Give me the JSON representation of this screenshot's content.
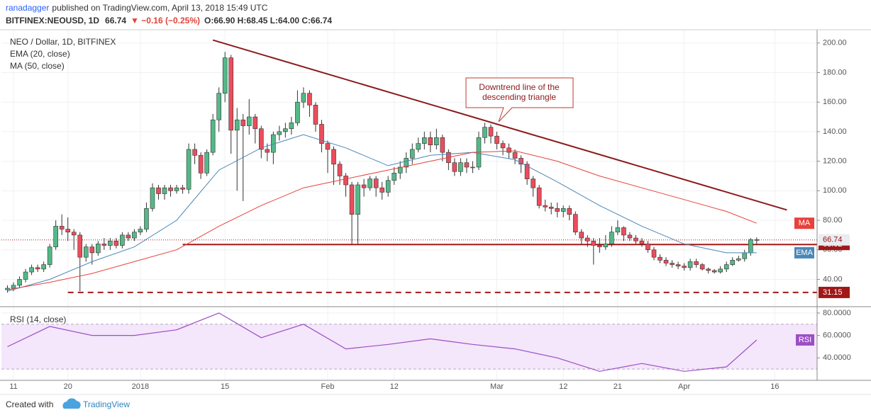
{
  "header": {
    "user": "ranadagger",
    "published": "published on TradingView.com, April 13, 2018 15:49 UTC",
    "symbol": "BITFINEX:NEOUSD, 1D",
    "price": "66.74",
    "change": "▼ −0.16 (−0.25%)",
    "ohlc": "O:66.90 H:68.45 L:64.00 C:66.74"
  },
  "footer": {
    "created": "Created with",
    "brand": "TradingView"
  },
  "chart_data": [
    {
      "type": "candlestick",
      "title": "NEO / Dollar, 1D, BITFINEX",
      "x": [
        "2017-12-10",
        "2017-12-11",
        "2017-12-12",
        "2017-12-13",
        "2017-12-14",
        "2017-12-15",
        "2017-12-16",
        "2017-12-17",
        "2017-12-18",
        "2017-12-19",
        "2017-12-20",
        "2017-12-21",
        "2017-12-22",
        "2017-12-23",
        "2017-12-24",
        "2017-12-25",
        "2017-12-26",
        "2017-12-27",
        "2017-12-28",
        "2017-12-29",
        "2017-12-30",
        "2017-12-31",
        "2018-01-01",
        "2018-01-02",
        "2018-01-03",
        "2018-01-04",
        "2018-01-05",
        "2018-01-06",
        "2018-01-07",
        "2018-01-08",
        "2018-01-09",
        "2018-01-10",
        "2018-01-11",
        "2018-01-12",
        "2018-01-13",
        "2018-01-14",
        "2018-01-15",
        "2018-01-16",
        "2018-01-17",
        "2018-01-18",
        "2018-01-19",
        "2018-01-20",
        "2018-01-21",
        "2018-01-22",
        "2018-01-23",
        "2018-01-24",
        "2018-01-25",
        "2018-01-26",
        "2018-01-27",
        "2018-01-28",
        "2018-01-29",
        "2018-01-30",
        "2018-01-31",
        "2018-02-01",
        "2018-02-02",
        "2018-02-03",
        "2018-02-04",
        "2018-02-05",
        "2018-02-06",
        "2018-02-07",
        "2018-02-08",
        "2018-02-09",
        "2018-02-10",
        "2018-02-11",
        "2018-02-12",
        "2018-02-13",
        "2018-02-14",
        "2018-02-15",
        "2018-02-16",
        "2018-02-17",
        "2018-02-18",
        "2018-02-19",
        "2018-02-20",
        "2018-02-21",
        "2018-02-22",
        "2018-02-23",
        "2018-02-24",
        "2018-02-25",
        "2018-02-26",
        "2018-02-27",
        "2018-02-28",
        "2018-03-01",
        "2018-03-02",
        "2018-03-03",
        "2018-03-04",
        "2018-03-05",
        "2018-03-06",
        "2018-03-07",
        "2018-03-08",
        "2018-03-09",
        "2018-03-10",
        "2018-03-11",
        "2018-03-12",
        "2018-03-13",
        "2018-03-14",
        "2018-03-15",
        "2018-03-16",
        "2018-03-17",
        "2018-03-18",
        "2018-03-19",
        "2018-03-20",
        "2018-03-21",
        "2018-03-22",
        "2018-03-23",
        "2018-03-24",
        "2018-03-25",
        "2018-03-26",
        "2018-03-27",
        "2018-03-28",
        "2018-03-29",
        "2018-03-30",
        "2018-03-31",
        "2018-04-01",
        "2018-04-02",
        "2018-04-03",
        "2018-04-04",
        "2018-04-05",
        "2018-04-06",
        "2018-04-07",
        "2018-04-08",
        "2018-04-09",
        "2018-04-10",
        "2018-04-11",
        "2018-04-12",
        "2018-04-13"
      ],
      "open": [
        33,
        34,
        36,
        40,
        45,
        48,
        47,
        50,
        62,
        76,
        74,
        72,
        70,
        55,
        62,
        58,
        64,
        63,
        66,
        63,
        70,
        68,
        72,
        74,
        88,
        102,
        98,
        102,
        100,
        102,
        101,
        128,
        124,
        112,
        126,
        148,
        166,
        190,
        141,
        148,
        144,
        150,
        142,
        128,
        126,
        138,
        140,
        142,
        146,
        160,
        166,
        158,
        145,
        132,
        128,
        118,
        110,
        104,
        84,
        104,
        102,
        108,
        102,
        99,
        107,
        112,
        116,
        122,
        128,
        132,
        136,
        131,
        136,
        126,
        119,
        113,
        119,
        116,
        116,
        136,
        143,
        137,
        132,
        129,
        126,
        122,
        118,
        108,
        102,
        90,
        89,
        88,
        86,
        88,
        84,
        72,
        68,
        66,
        63,
        62,
        64,
        72,
        75,
        70,
        68,
        66,
        64,
        60,
        55,
        53,
        51,
        50,
        49,
        48,
        52,
        50,
        47,
        46,
        45,
        47,
        50,
        53,
        54,
        58,
        66.9
      ],
      "high": [
        36,
        38,
        42,
        47,
        50,
        50,
        52,
        64,
        80,
        84,
        82,
        74,
        72,
        64,
        64,
        66,
        68,
        68,
        68,
        72,
        72,
        74,
        76,
        92,
        105,
        104,
        104,
        104,
        104,
        104,
        132,
        132,
        126,
        128,
        152,
        170,
        194,
        192,
        156,
        152,
        162,
        152,
        144,
        132,
        140,
        144,
        146,
        150,
        168,
        170,
        168,
        160,
        148,
        134,
        130,
        120,
        112,
        106,
        106,
        108,
        110,
        110,
        106,
        110,
        116,
        120,
        126,
        132,
        136,
        140,
        140,
        142,
        138,
        128,
        122,
        122,
        122,
        120,
        140,
        146,
        145,
        140,
        134,
        132,
        128,
        124,
        120,
        110,
        104,
        94,
        92,
        92,
        90,
        90,
        86,
        74,
        70,
        68,
        68,
        70,
        76,
        80,
        76,
        72,
        70,
        68,
        66,
        62,
        57,
        55,
        53,
        52,
        51,
        54,
        54,
        51,
        48,
        47,
        49,
        52,
        55,
        56,
        60,
        68,
        68.45
      ],
      "low": [
        31,
        32,
        34,
        38,
        43,
        45,
        45,
        48,
        60,
        70,
        66,
        60,
        32,
        52,
        50,
        56,
        60,
        60,
        61,
        61,
        66,
        66,
        70,
        72,
        86,
        94,
        94,
        96,
        98,
        98,
        98,
        118,
        108,
        110,
        124,
        140,
        160,
        125,
        100,
        93,
        138,
        132,
        122,
        120,
        118,
        134,
        136,
        138,
        144,
        156,
        150,
        140,
        126,
        112,
        104,
        104,
        96,
        64,
        64,
        96,
        100,
        96,
        94,
        96,
        104,
        108,
        112,
        118,
        126,
        128,
        126,
        128,
        120,
        114,
        110,
        110,
        112,
        112,
        114,
        132,
        132,
        128,
        124,
        122,
        118,
        112,
        104,
        96,
        88,
        86,
        84,
        82,
        82,
        80,
        70,
        64,
        62,
        50,
        58,
        60,
        62,
        70,
        66,
        66,
        64,
        62,
        58,
        53,
        51,
        49,
        48,
        47,
        46,
        46,
        48,
        46,
        44,
        44,
        44,
        45,
        49,
        52,
        52,
        56,
        64
      ],
      "close": [
        34,
        36,
        40,
        45,
        48,
        47,
        50,
        62,
        76,
        74,
        72,
        70,
        55,
        62,
        58,
        64,
        63,
        66,
        63,
        70,
        68,
        72,
        74,
        88,
        102,
        98,
        102,
        100,
        102,
        101,
        128,
        124,
        112,
        126,
        148,
        166,
        190,
        141,
        148,
        144,
        150,
        142,
        128,
        126,
        138,
        140,
        142,
        146,
        160,
        166,
        158,
        145,
        132,
        128,
        118,
        110,
        104,
        84,
        104,
        102,
        108,
        102,
        99,
        107,
        112,
        116,
        122,
        128,
        132,
        136,
        131,
        136,
        126,
        119,
        113,
        119,
        116,
        116,
        136,
        143,
        137,
        132,
        129,
        126,
        122,
        118,
        108,
        102,
        90,
        89,
        88,
        86,
        88,
        84,
        72,
        68,
        66,
        63,
        62,
        64,
        72,
        75,
        70,
        68,
        66,
        64,
        60,
        55,
        53,
        51,
        50,
        49,
        48,
        52,
        50,
        47,
        46,
        45,
        47,
        50,
        53,
        54,
        58,
        66.9,
        66.74
      ],
      "up_color": "#53b987",
      "down_color": "#eb4d5c",
      "xlim": [
        "2017-12-09",
        "2018-04-23"
      ],
      "xticks": [
        {
          "value": "2017-12-11",
          "label": "11"
        },
        {
          "value": "2017-12-20",
          "label": "20"
        },
        {
          "value": "2018-01-01",
          "label": "2018"
        },
        {
          "value": "2018-01-15",
          "label": "15"
        },
        {
          "value": "2018-02-01",
          "label": "Feb"
        },
        {
          "value": "2018-02-12",
          "label": "12"
        },
        {
          "value": "2018-03-01",
          "label": "Mar"
        },
        {
          "value": "2018-03-12",
          "label": "12"
        },
        {
          "value": "2018-03-21",
          "label": "21"
        },
        {
          "value": "2018-04-01",
          "label": "Apr"
        },
        {
          "value": "2018-04-16",
          "label": "16"
        }
      ],
      "ylim": [
        22,
        209
      ],
      "yticks": [
        {
          "value": 40,
          "label": "40.00"
        },
        {
          "value": 60,
          "label": "60.00"
        },
        {
          "value": 80,
          "label": "80.00"
        },
        {
          "value": 100,
          "label": "100.00"
        },
        {
          "value": 120,
          "label": "120.00"
        },
        {
          "value": 140,
          "label": "140.00"
        },
        {
          "value": 160,
          "label": "160.00"
        },
        {
          "value": 180,
          "label": "180.00"
        },
        {
          "value": 200,
          "label": "200.00"
        }
      ],
      "grid": true,
      "last_price": 66.74,
      "overlays": [
        {
          "name": "EMA (20, close)",
          "tag": "EMA",
          "color": "#4a87b8",
          "x": [
            "2017-12-10",
            "2017-12-17",
            "2017-12-24",
            "2017-12-31",
            "2018-01-07",
            "2018-01-14",
            "2018-01-21",
            "2018-01-28",
            "2018-02-04",
            "2018-02-11",
            "2018-02-18",
            "2018-02-25",
            "2018-03-04",
            "2018-03-11",
            "2018-03-18",
            "2018-03-25",
            "2018-04-01",
            "2018-04-08",
            "2018-04-13"
          ],
          "values": [
            32,
            40,
            52,
            62,
            80,
            114,
            129,
            138,
            129,
            117,
            124,
            126,
            121,
            106,
            90,
            76,
            64,
            58,
            58
          ]
        },
        {
          "name": "MA (50, close)",
          "tag": "MA",
          "color": "#e8413c",
          "x": [
            "2017-12-10",
            "2017-12-17",
            "2017-12-24",
            "2017-12-31",
            "2018-01-07",
            "2018-01-14",
            "2018-01-21",
            "2018-01-28",
            "2018-02-04",
            "2018-02-11",
            "2018-02-18",
            "2018-02-25",
            "2018-03-04",
            "2018-03-11",
            "2018-03-18",
            "2018-03-25",
            "2018-04-01",
            "2018-04-08",
            "2018-04-13"
          ],
          "values": [
            33,
            38,
            44,
            52,
            60,
            76,
            90,
            102,
            108,
            114,
            120,
            126,
            127,
            120,
            110,
            102,
            94,
            86,
            78
          ]
        }
      ],
      "levels": [
        {
          "value": 63.62,
          "from": "2018-01-08",
          "color": "#a01818",
          "dashed": false
        },
        {
          "value": 31.15,
          "from": "2017-12-20",
          "color": "#a01818",
          "dashed": true
        }
      ],
      "trendline": {
        "x": [
          "2018-01-13",
          "2018-04-18"
        ],
        "y": [
          202,
          87
        ],
        "color": "#8b1a1a"
      },
      "annotation": [
        "Downtrend line of the",
        "descending triangle"
      ]
    },
    {
      "type": "line",
      "title": "RSI (14, close)",
      "tag": "RSI",
      "color": "#9b4fc4",
      "x": [
        "2017-12-10",
        "2017-12-17",
        "2017-12-24",
        "2017-12-31",
        "2018-01-07",
        "2018-01-14",
        "2018-01-21",
        "2018-01-28",
        "2018-02-04",
        "2018-02-11",
        "2018-02-18",
        "2018-02-25",
        "2018-03-04",
        "2018-03-11",
        "2018-03-18",
        "2018-03-25",
        "2018-04-01",
        "2018-04-08",
        "2018-04-13"
      ],
      "values": [
        50,
        68,
        60,
        60,
        65,
        80,
        58,
        70,
        48,
        52,
        57,
        52,
        48,
        40,
        28,
        35,
        28,
        32,
        56
      ],
      "ylim": [
        20,
        85
      ],
      "yticks": [
        {
          "value": 40,
          "label": "40.0000"
        },
        {
          "value": 60,
          "label": "60.0000"
        },
        {
          "value": 80,
          "label": "80.0000"
        }
      ],
      "band": [
        30,
        70
      ],
      "band_color": "#f4e6fb"
    }
  ]
}
